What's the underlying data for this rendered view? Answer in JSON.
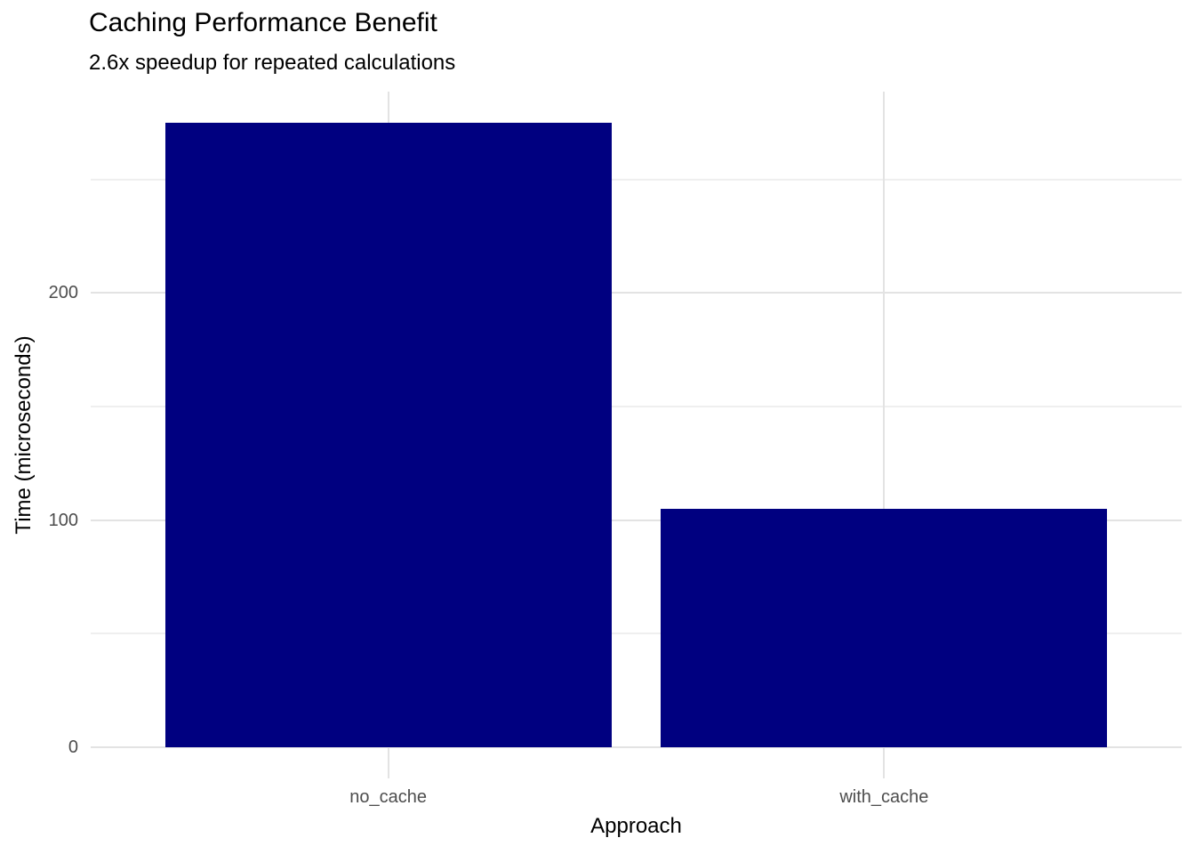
{
  "chart_data": {
    "type": "bar",
    "title": "Caching Performance Benefit",
    "subtitle": "2.6x speedup for repeated calculations",
    "xlabel": "Approach",
    "ylabel": "Time (microseconds)",
    "categories": [
      "no_cache",
      "with_cache"
    ],
    "values": [
      275,
      105
    ],
    "y_ticks": [
      0,
      100,
      200
    ],
    "y_minor_ticks": [
      50,
      150,
      250
    ],
    "ylim": [
      -13.75,
      288.75
    ],
    "grid": "major and minor horizontal, major vertical at category centers",
    "legend": "none"
  },
  "colors": {
    "bar": "#000080",
    "grid_major": "#e3e3e3",
    "grid_minor": "#efefef",
    "tick_label": "#4d4d4d",
    "text": "#000000",
    "background": "#ffffff"
  }
}
